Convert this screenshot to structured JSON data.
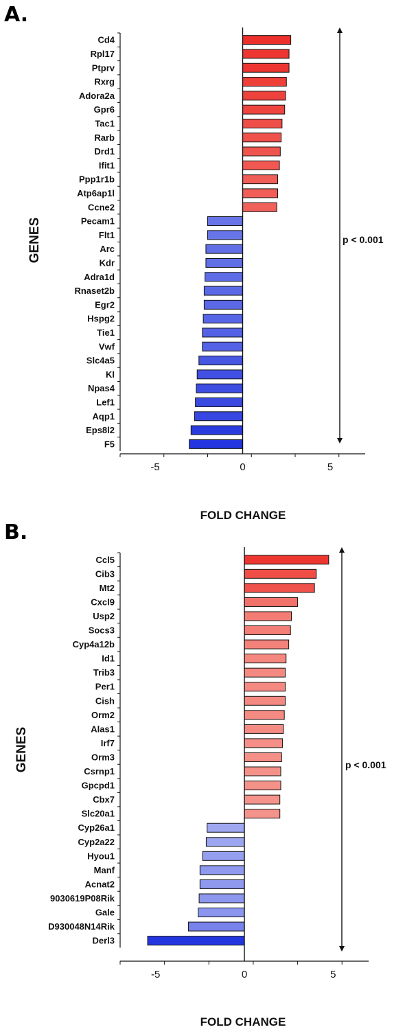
{
  "chart_data": [
    {
      "type": "bar",
      "orientation": "horizontal",
      "panel": "A.",
      "xlabel": "FOLD CHANGE",
      "ylabel": "GENES",
      "xlim": [
        -7,
        7
      ],
      "xticks": [
        -5,
        0,
        5
      ],
      "annotation": "p < 0.001",
      "categories": [
        "Cd4",
        "Rpl17",
        "Ptprv",
        "Rxrg",
        "Adora2a",
        "Gpr6",
        "Tac1",
        "Rarb",
        "Drd1",
        "Ifit1",
        "Ppp1r1b",
        "Atp6ap1l",
        "Ccne2",
        "Pecam1",
        "Flt1",
        "Arc",
        "Kdr",
        "Adra1d",
        "Rnaset2b",
        "Egr2",
        "Hspg2",
        "Tie1",
        "Vwf",
        "Slc4a5",
        "Kl",
        "Npas4",
        "Lef1",
        "Aqp1",
        "Eps8l2",
        "F5"
      ],
      "values": [
        2.75,
        2.65,
        2.65,
        2.5,
        2.45,
        2.4,
        2.25,
        2.2,
        2.15,
        2.1,
        2.0,
        2.0,
        1.95,
        -2.0,
        -2.0,
        -2.1,
        -2.1,
        -2.15,
        -2.2,
        -2.2,
        -2.25,
        -2.3,
        -2.3,
        -2.5,
        -2.6,
        -2.65,
        -2.7,
        -2.75,
        -2.95,
        -3.05
      ]
    },
    {
      "type": "bar",
      "orientation": "horizontal",
      "panel": "B.",
      "xlabel": "FOLD CHANGE",
      "ylabel": "GENES",
      "xlim": [
        -7,
        7
      ],
      "xticks": [
        -5,
        0,
        5
      ],
      "annotation": "p < 0.001",
      "categories": [
        "Ccl5",
        "Cib3",
        "Mt2",
        "Cxcl9",
        "Usp2",
        "Socs3",
        "Cyp4a12b",
        "Id1",
        "Trib3",
        "Per1",
        "Cish",
        "Orm2",
        "Alas1",
        "Irf7",
        "Orm3",
        "Csrnp1",
        "Gpcpd1",
        "Cbx7",
        "Slc20a1",
        "Cyp26a1",
        "Cyp2a22",
        "Hyou1",
        "Manf",
        "Acnat2",
        "9030619P08Rik",
        "Gale",
        "D930048N14Rik",
        "Derl3"
      ],
      "values": [
        4.75,
        4.05,
        3.95,
        3.0,
        2.65,
        2.6,
        2.5,
        2.35,
        2.3,
        2.3,
        2.3,
        2.25,
        2.2,
        2.15,
        2.1,
        2.05,
        2.05,
        2.0,
        2.0,
        -2.1,
        -2.15,
        -2.35,
        -2.5,
        -2.5,
        -2.55,
        -2.6,
        -3.15,
        -5.45
      ]
    }
  ]
}
